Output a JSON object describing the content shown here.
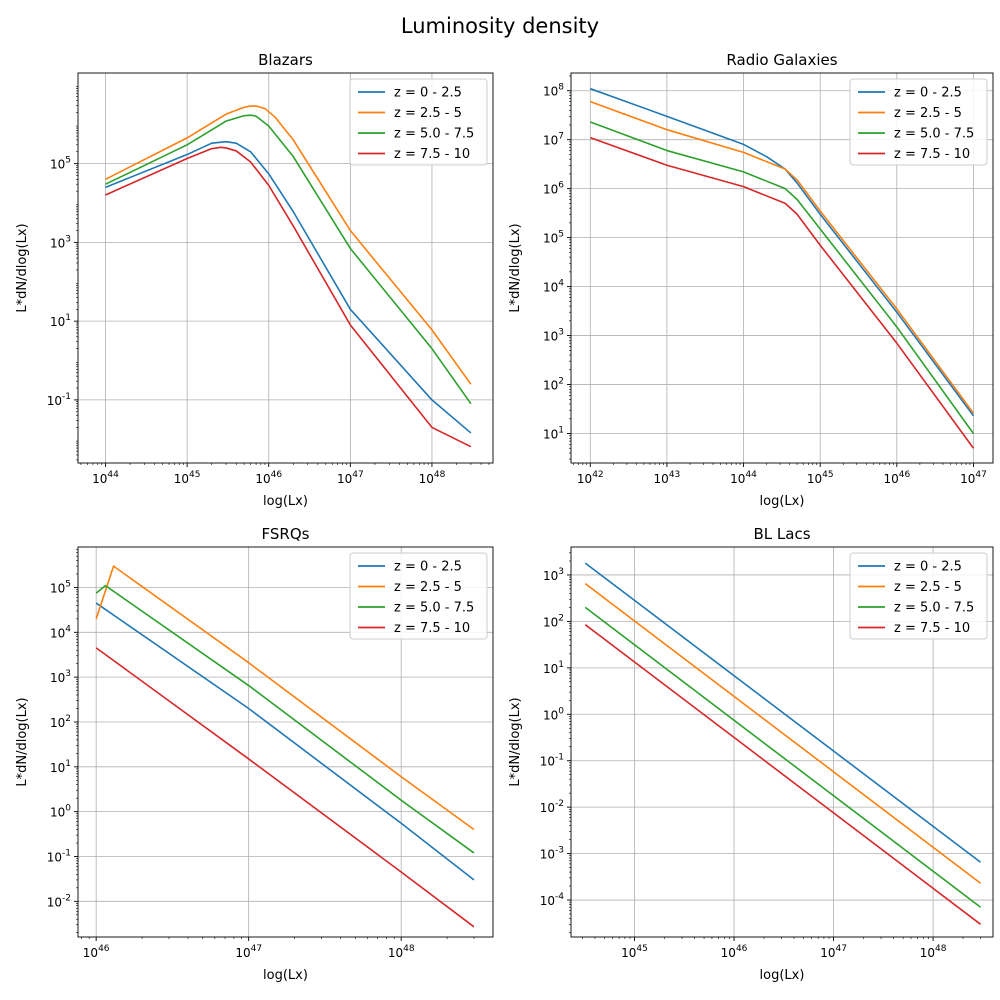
{
  "figure": {
    "title": "Luminosity density"
  },
  "colors": {
    "series": [
      "#1f77b4",
      "#ff7f0e",
      "#2ca02c",
      "#d62728"
    ],
    "grid": "#b0b0b0"
  },
  "chart_data": [
    {
      "type": "line",
      "title": "Blazars",
      "xlabel": "log(Lx)",
      "ylabel": "L*dN/dlog(Lx)",
      "xscale": "log",
      "yscale": "log",
      "xlim": [
        4.6e+43,
        5.6e+48
      ],
      "ylim": [
        0.0025,
        20000000
      ],
      "xticks": [
        1e+44,
        1e+45,
        1e+46,
        1e+47,
        1e+48
      ],
      "xtick_labels": [
        "10^44",
        "10^45",
        "10^46",
        "10^47",
        "10^48"
      ],
      "yticks": [
        0.1,
        10,
        1000,
        100000
      ],
      "ytick_labels": [
        "10^-1",
        "10^1",
        "10^3",
        "10^5"
      ],
      "grid": true,
      "legend": "upper right",
      "series": [
        {
          "name": "z = 0 - 2.5",
          "x": [
            1e+44,
            1e+45,
            2e+45,
            3e+45,
            4e+45,
            6e+45,
            1e+46,
            2e+46,
            1e+47,
            1e+48,
            3e+48
          ],
          "y": [
            25000,
            170000,
            330000,
            360000,
            330000,
            200000,
            55000,
            6000,
            20,
            0.1,
            0.0145
          ]
        },
        {
          "name": "z = 2.5 - 5",
          "x": [
            1e+44,
            1e+45,
            3e+45,
            5e+45,
            6e+45,
            7e+45,
            9e+45,
            1.2e+46,
            2e+46,
            1e+47,
            1e+48,
            3e+48
          ],
          "y": [
            40000,
            450000,
            1800000,
            2700000,
            2900000,
            2900000,
            2500000,
            1500000,
            400000,
            2000,
            6,
            0.25
          ]
        },
        {
          "name": "z = 5.0 - 7.5",
          "x": [
            1e+44,
            1e+45,
            3e+45,
            5e+45,
            6e+45,
            7e+45,
            1e+46,
            2e+46,
            1e+47,
            1e+48,
            3e+48
          ],
          "y": [
            30000,
            300000,
            1200000,
            1650000,
            1700000,
            1600000,
            900000,
            150000,
            700,
            2,
            0.08
          ]
        },
        {
          "name": "z = 7.5 - 10",
          "x": [
            1e+44,
            1e+45,
            2e+45,
            2.6e+45,
            3e+45,
            4e+45,
            6e+45,
            1e+46,
            2e+46,
            1e+47,
            1e+48,
            3e+48
          ],
          "y": [
            16000,
            135000,
            240000,
            260000,
            250000,
            210000,
            110000,
            28000,
            2600,
            8,
            0.02,
            0.0065
          ]
        }
      ]
    },
    {
      "type": "line",
      "title": "Radio Galaxies",
      "xlabel": "log(Lx)",
      "ylabel": "L*dN/dlog(Lx)",
      "xscale": "log",
      "yscale": "log",
      "xlim": [
        5.6e+41,
        1.8e+47
      ],
      "ylim": [
        2.5,
        230000000.0
      ],
      "xticks": [
        1e+42,
        1e+43,
        1e+44,
        1e+45,
        1e+46,
        1e+47
      ],
      "xtick_labels": [
        "10^42",
        "10^43",
        "10^44",
        "10^45",
        "10^46",
        "10^47"
      ],
      "yticks": [
        10,
        100,
        1000,
        10000,
        100000,
        1000000,
        10000000,
        100000000
      ],
      "ytick_labels": [
        "10^1",
        "10^2",
        "10^3",
        "10^4",
        "10^5",
        "10^6",
        "10^7",
        "10^8"
      ],
      "grid": true,
      "legend": "upper right",
      "series": [
        {
          "name": "z = 0 - 2.5",
          "x": [
            1e+42,
            1e+43,
            1e+44,
            2e+44,
            3.5e+44,
            5e+44,
            1e+45,
            1e+46,
            1e+47
          ],
          "y": [
            110000000,
            30000000,
            8000000,
            4500000,
            2500000,
            1300000,
            300000,
            3000,
            23
          ]
        },
        {
          "name": "z = 2.5 - 5",
          "x": [
            1e+42,
            1e+43,
            1e+44,
            3.5e+44,
            5e+44,
            1e+45,
            1e+46,
            1e+47
          ],
          "y": [
            60000000,
            16000000,
            5500000,
            2500000,
            1500000,
            350000,
            3500,
            26
          ]
        },
        {
          "name": "z = 5.0 - 7.5",
          "x": [
            1e+42,
            1e+43,
            1e+44,
            3.5e+44,
            5e+44,
            1e+45,
            1e+46,
            1e+47
          ],
          "y": [
            23000000,
            6000000,
            2200000,
            1000000,
            600000,
            150000,
            1500,
            10
          ]
        },
        {
          "name": "z = 7.5 - 10",
          "x": [
            1e+42,
            1e+43,
            1e+44,
            3.5e+44,
            5e+44,
            1e+45,
            1e+46,
            1e+47
          ],
          "y": [
            11000000,
            3000000,
            1100000,
            500000,
            300000,
            70000,
            700,
            5
          ]
        }
      ]
    },
    {
      "type": "line",
      "title": "FSRQs",
      "xlabel": "log(Lx)",
      "ylabel": "L*dN/dlog(Lx)",
      "xscale": "log",
      "yscale": "log",
      "xlim": [
        7.6e+45,
        4e+48
      ],
      "ylim": [
        0.0016,
        800000
      ],
      "xticks": [
        1e+46,
        1e+47,
        1e+48
      ],
      "xtick_labels": [
        "10^46",
        "10^47",
        "10^48"
      ],
      "yticks": [
        0.01,
        0.1,
        1,
        10,
        100,
        1000,
        10000,
        100000
      ],
      "ytick_labels": [
        "10^-2",
        "10^-1",
        "10^0",
        "10^1",
        "10^2",
        "10^3",
        "10^4",
        "10^5"
      ],
      "grid": true,
      "legend": "upper right",
      "series": [
        {
          "name": "z = 0 - 2.5",
          "x": [
            1e+46,
            1e+47,
            1e+48,
            3e+48
          ],
          "y": [
            45000,
            200,
            0.55,
            0.03
          ]
        },
        {
          "name": "z = 2.5 - 5",
          "x": [
            1e+46,
            1.3e+46,
            1e+47,
            1e+48,
            3e+48
          ],
          "y": [
            20000,
            300000,
            2100,
            6,
            0.4
          ]
        },
        {
          "name": "z = 5.0 - 7.5",
          "x": [
            1e+46,
            1.15e+46,
            1e+47,
            1e+48,
            3e+48
          ],
          "y": [
            75000,
            110000,
            650,
            1.8,
            0.12
          ]
        },
        {
          "name": "z = 7.5 - 10",
          "x": [
            1e+46,
            1e+47,
            1e+48,
            3e+48
          ],
          "y": [
            4500,
            15,
            0.045,
            0.0027
          ]
        }
      ]
    },
    {
      "type": "line",
      "title": "BL Lacs",
      "xlabel": "log(Lx)",
      "ylabel": "L*dN/dlog(Lx)",
      "xscale": "log",
      "yscale": "log",
      "xlim": [
        2.3e+44,
        4e+48
      ],
      "ylim": [
        1.6e-05,
        4000
      ],
      "xticks": [
        1e+45,
        1e+46,
        1e+47,
        1e+48
      ],
      "xtick_labels": [
        "10^45",
        "10^46",
        "10^47",
        "10^48"
      ],
      "yticks": [
        0.0001,
        0.001,
        0.01,
        0.1,
        1,
        10,
        100,
        1000
      ],
      "ytick_labels": [
        "10^-4",
        "10^-3",
        "10^-2",
        "10^-1",
        "10^0",
        "10^1",
        "10^2",
        "10^3"
      ],
      "grid": true,
      "legend": "upper right",
      "series": [
        {
          "name": "z = 0 - 2.5",
          "x": [
            3.2e+44,
            3e+48
          ],
          "y": [
            1800,
            0.00065
          ]
        },
        {
          "name": "z = 2.5 - 5",
          "x": [
            3.2e+44,
            3e+48
          ],
          "y": [
            650,
            0.00023
          ]
        },
        {
          "name": "z = 5.0 - 7.5",
          "x": [
            3.2e+44,
            3e+48
          ],
          "y": [
            200,
            7e-05
          ]
        },
        {
          "name": "z = 7.5 - 10",
          "x": [
            3.2e+44,
            3e+48
          ],
          "y": [
            85,
            3e-05
          ]
        }
      ]
    }
  ]
}
